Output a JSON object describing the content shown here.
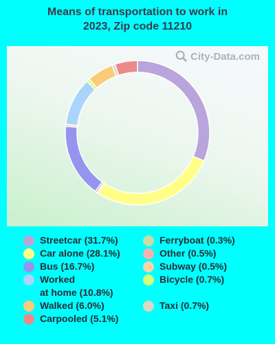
{
  "title_line1": "Means of transportation to work in",
  "title_line2": "2023, Zip code 11210",
  "watermark": "City-Data.com",
  "chart_data": {
    "type": "pie",
    "title": "Means of transportation to work in 2023, Zip code 11210",
    "series": [
      {
        "name": "Streetcar",
        "value": 31.7,
        "label": "Streetcar (31.7%)",
        "color": "#b9a4db"
      },
      {
        "name": "Car alone",
        "value": 28.1,
        "label": "Car alone (28.1%)",
        "color": "#ffff88"
      },
      {
        "name": "Bus",
        "value": 16.7,
        "label": "Bus (16.7%)",
        "color": "#9595f0"
      },
      {
        "name": "Worked at home",
        "value": 10.8,
        "label": "Worked at home (10.8%)",
        "label_line1": "Worked",
        "label_line2": "at home (10.8%)",
        "color": "#aad4fb"
      },
      {
        "name": "Walked",
        "value": 6.0,
        "label": "Walked (6.0%)",
        "color": "#fccb78"
      },
      {
        "name": "Carpooled",
        "value": 5.1,
        "label": "Carpooled (5.1%)",
        "color": "#ec8a8a"
      },
      {
        "name": "Ferryboat",
        "value": 0.3,
        "label": "Ferryboat (0.3%)",
        "color": "#c8dca6"
      },
      {
        "name": "Other",
        "value": 0.5,
        "label": "Other (0.5%)",
        "color": "#f4b1b1"
      },
      {
        "name": "Subway",
        "value": 0.5,
        "label": "Subway (0.5%)",
        "color": "#fbd3a8"
      },
      {
        "name": "Bicycle",
        "value": 0.7,
        "label": "Bicycle (0.7%)",
        "color": "#d5ff7a"
      },
      {
        "name": "Taxi",
        "value": 0.7,
        "label": "Taxi (0.7%)",
        "color": "#dcd8c4"
      }
    ],
    "slice_order": [
      "Streetcar",
      "Car alone",
      "Ferryboat",
      "Other",
      "Bus",
      "Subway",
      "Worked at home",
      "Bicycle",
      "Walked",
      "Taxi",
      "Carpooled"
    ]
  }
}
